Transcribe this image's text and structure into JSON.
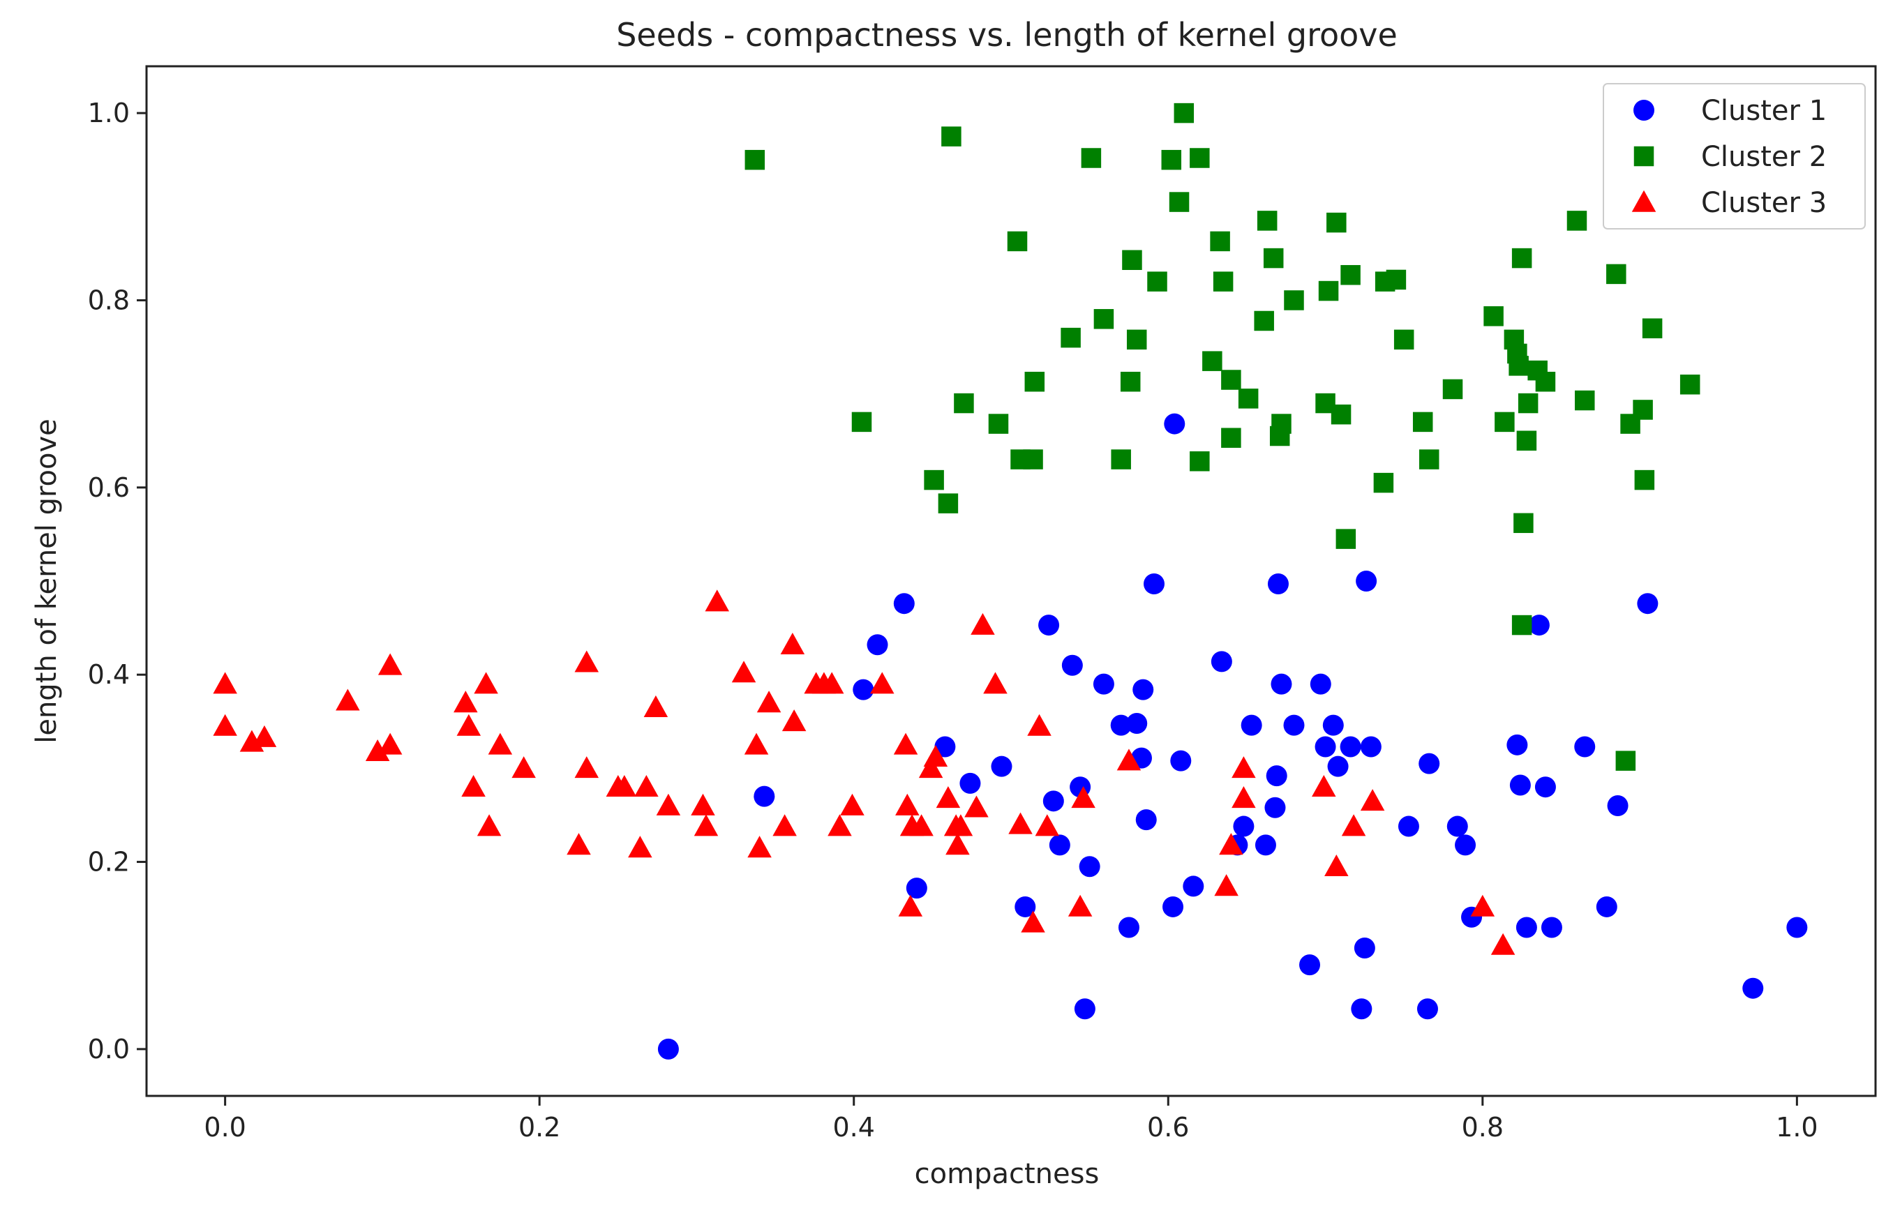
{
  "chart_data": {
    "type": "scatter",
    "title": "Seeds - compactness  vs.  length of kernel groove",
    "xlabel": "compactness",
    "ylabel": "length of kernel groove",
    "xlim": [
      -0.05,
      1.05
    ],
    "ylim": [
      -0.05,
      1.05
    ],
    "xticks": [
      0.0,
      0.2,
      0.4,
      0.6,
      0.8,
      1.0
    ],
    "yticks": [
      0.0,
      0.2,
      0.4,
      0.6,
      0.8,
      1.0
    ],
    "xtick_labels": [
      "0.0",
      "0.2",
      "0.4",
      "0.6",
      "0.8",
      "1.0"
    ],
    "ytick_labels": [
      "0.0",
      "0.2",
      "0.4",
      "0.6",
      "0.8",
      "1.0"
    ],
    "grid": false,
    "legend_position": "top-right",
    "series": [
      {
        "name": "Cluster 1",
        "marker": "circle",
        "color": "#0000ff",
        "points": [
          [
            0.282,
            0.0
          ],
          [
            0.343,
            0.27
          ],
          [
            0.406,
            0.384
          ],
          [
            0.415,
            0.432
          ],
          [
            0.432,
            0.476
          ],
          [
            0.44,
            0.172
          ],
          [
            0.458,
            0.323
          ],
          [
            0.474,
            0.284
          ],
          [
            0.494,
            0.302
          ],
          [
            0.509,
            0.152
          ],
          [
            0.524,
            0.453
          ],
          [
            0.527,
            0.265
          ],
          [
            0.531,
            0.218
          ],
          [
            0.539,
            0.41
          ],
          [
            0.544,
            0.28
          ],
          [
            0.547,
            0.043
          ],
          [
            0.55,
            0.195
          ],
          [
            0.559,
            0.39
          ],
          [
            0.57,
            0.346
          ],
          [
            0.575,
            0.13
          ],
          [
            0.58,
            0.348
          ],
          [
            0.583,
            0.311
          ],
          [
            0.584,
            0.384
          ],
          [
            0.586,
            0.245
          ],
          [
            0.591,
            0.497
          ],
          [
            0.603,
            0.152
          ],
          [
            0.604,
            0.668
          ],
          [
            0.608,
            0.308
          ],
          [
            0.616,
            0.174
          ],
          [
            0.634,
            0.414
          ],
          [
            0.644,
            0.218
          ],
          [
            0.648,
            0.238
          ],
          [
            0.653,
            0.346
          ],
          [
            0.662,
            0.218
          ],
          [
            0.668,
            0.258
          ],
          [
            0.669,
            0.292
          ],
          [
            0.67,
            0.497
          ],
          [
            0.672,
            0.39
          ],
          [
            0.68,
            0.346
          ],
          [
            0.69,
            0.09
          ],
          [
            0.697,
            0.39
          ],
          [
            0.7,
            0.323
          ],
          [
            0.705,
            0.346
          ],
          [
            0.708,
            0.302
          ],
          [
            0.716,
            0.323
          ],
          [
            0.723,
            0.043
          ],
          [
            0.725,
            0.108
          ],
          [
            0.726,
            0.5
          ],
          [
            0.729,
            0.323
          ],
          [
            0.753,
            0.238
          ],
          [
            0.765,
            0.043
          ],
          [
            0.766,
            0.305
          ],
          [
            0.784,
            0.238
          ],
          [
            0.789,
            0.218
          ],
          [
            0.793,
            0.141
          ],
          [
            0.822,
            0.325
          ],
          [
            0.824,
            0.282
          ],
          [
            0.828,
            0.13
          ],
          [
            0.836,
            0.453
          ],
          [
            0.84,
            0.28
          ],
          [
            0.844,
            0.13
          ],
          [
            0.865,
            0.323
          ],
          [
            0.879,
            0.152
          ],
          [
            0.886,
            0.26
          ],
          [
            0.905,
            0.476
          ],
          [
            0.972,
            0.065
          ],
          [
            1.0,
            0.13
          ]
        ]
      },
      {
        "name": "Cluster 2",
        "marker": "square",
        "color": "#008000",
        "points": [
          [
            0.337,
            0.95
          ],
          [
            0.405,
            0.67
          ],
          [
            0.451,
            0.608
          ],
          [
            0.46,
            0.583
          ],
          [
            0.462,
            0.975
          ],
          [
            0.47,
            0.69
          ],
          [
            0.492,
            0.668
          ],
          [
            0.504,
            0.863
          ],
          [
            0.506,
            0.63
          ],
          [
            0.514,
            0.63
          ],
          [
            0.515,
            0.713
          ],
          [
            0.538,
            0.76
          ],
          [
            0.551,
            0.952
          ],
          [
            0.559,
            0.78
          ],
          [
            0.57,
            0.63
          ],
          [
            0.576,
            0.713
          ],
          [
            0.577,
            0.843
          ],
          [
            0.58,
            0.758
          ],
          [
            0.593,
            0.82
          ],
          [
            0.602,
            0.95
          ],
          [
            0.607,
            0.905
          ],
          [
            0.61,
            1.0
          ],
          [
            0.62,
            0.952
          ],
          [
            0.62,
            0.628
          ],
          [
            0.628,
            0.735
          ],
          [
            0.633,
            0.863
          ],
          [
            0.635,
            0.82
          ],
          [
            0.64,
            0.715
          ],
          [
            0.64,
            0.653
          ],
          [
            0.651,
            0.695
          ],
          [
            0.661,
            0.778
          ],
          [
            0.663,
            0.885
          ],
          [
            0.667,
            0.845
          ],
          [
            0.671,
            0.655
          ],
          [
            0.672,
            0.668
          ],
          [
            0.68,
            0.8
          ],
          [
            0.7,
            0.69
          ],
          [
            0.702,
            0.81
          ],
          [
            0.707,
            0.883
          ],
          [
            0.71,
            0.678
          ],
          [
            0.713,
            0.545
          ],
          [
            0.716,
            0.827
          ],
          [
            0.737,
            0.605
          ],
          [
            0.738,
            0.82
          ],
          [
            0.745,
            0.822
          ],
          [
            0.75,
            0.758
          ],
          [
            0.762,
            0.67
          ],
          [
            0.766,
            0.63
          ],
          [
            0.781,
            0.705
          ],
          [
            0.807,
            0.783
          ],
          [
            0.814,
            0.67
          ],
          [
            0.82,
            0.758
          ],
          [
            0.822,
            0.743
          ],
          [
            0.823,
            0.73
          ],
          [
            0.825,
            0.845
          ],
          [
            0.825,
            0.453
          ],
          [
            0.826,
            0.562
          ],
          [
            0.828,
            0.65
          ],
          [
            0.829,
            0.69
          ],
          [
            0.835,
            0.725
          ],
          [
            0.84,
            0.713
          ],
          [
            0.86,
            0.885
          ],
          [
            0.865,
            0.693
          ],
          [
            0.885,
            0.828
          ],
          [
            0.891,
            0.308
          ],
          [
            0.894,
            0.668
          ],
          [
            0.902,
            0.683
          ],
          [
            0.903,
            0.608
          ],
          [
            0.908,
            0.77
          ],
          [
            0.932,
            0.71
          ]
        ]
      },
      {
        "name": "Cluster 3",
        "marker": "triangle",
        "color": "#ff0000",
        "points": [
          [
            0.0,
            0.345
          ],
          [
            0.0,
            0.39
          ],
          [
            0.017,
            0.328
          ],
          [
            0.025,
            0.333
          ],
          [
            0.078,
            0.372
          ],
          [
            0.097,
            0.318
          ],
          [
            0.105,
            0.325
          ],
          [
            0.105,
            0.41
          ],
          [
            0.153,
            0.37
          ],
          [
            0.155,
            0.345
          ],
          [
            0.158,
            0.28
          ],
          [
            0.166,
            0.39
          ],
          [
            0.168,
            0.238
          ],
          [
            0.175,
            0.325
          ],
          [
            0.19,
            0.3
          ],
          [
            0.225,
            0.218
          ],
          [
            0.23,
            0.413
          ],
          [
            0.23,
            0.3
          ],
          [
            0.25,
            0.28
          ],
          [
            0.254,
            0.28
          ],
          [
            0.264,
            0.215
          ],
          [
            0.268,
            0.28
          ],
          [
            0.274,
            0.365
          ],
          [
            0.282,
            0.26
          ],
          [
            0.304,
            0.26
          ],
          [
            0.306,
            0.238
          ],
          [
            0.313,
            0.478
          ],
          [
            0.33,
            0.402
          ],
          [
            0.338,
            0.325
          ],
          [
            0.34,
            0.215
          ],
          [
            0.346,
            0.37
          ],
          [
            0.356,
            0.238
          ],
          [
            0.361,
            0.432
          ],
          [
            0.362,
            0.35
          ],
          [
            0.376,
            0.39
          ],
          [
            0.381,
            0.39
          ],
          [
            0.386,
            0.39
          ],
          [
            0.391,
            0.238
          ],
          [
            0.399,
            0.26
          ],
          [
            0.418,
            0.39
          ],
          [
            0.433,
            0.325
          ],
          [
            0.434,
            0.26
          ],
          [
            0.436,
            0.152
          ],
          [
            0.437,
            0.238
          ],
          [
            0.443,
            0.238
          ],
          [
            0.449,
            0.3
          ],
          [
            0.452,
            0.312
          ],
          [
            0.46,
            0.268
          ],
          [
            0.465,
            0.238
          ],
          [
            0.466,
            0.218
          ],
          [
            0.468,
            0.238
          ],
          [
            0.478,
            0.258
          ],
          [
            0.482,
            0.453
          ],
          [
            0.49,
            0.39
          ],
          [
            0.506,
            0.24
          ],
          [
            0.514,
            0.135
          ],
          [
            0.518,
            0.345
          ],
          [
            0.523,
            0.238
          ],
          [
            0.544,
            0.152
          ],
          [
            0.546,
            0.268
          ],
          [
            0.575,
            0.308
          ],
          [
            0.637,
            0.174
          ],
          [
            0.64,
            0.218
          ],
          [
            0.648,
            0.268
          ],
          [
            0.648,
            0.3
          ],
          [
            0.699,
            0.28
          ],
          [
            0.707,
            0.195
          ],
          [
            0.718,
            0.238
          ],
          [
            0.73,
            0.265
          ],
          [
            0.8,
            0.152
          ],
          [
            0.813,
            0.111
          ]
        ]
      }
    ]
  }
}
